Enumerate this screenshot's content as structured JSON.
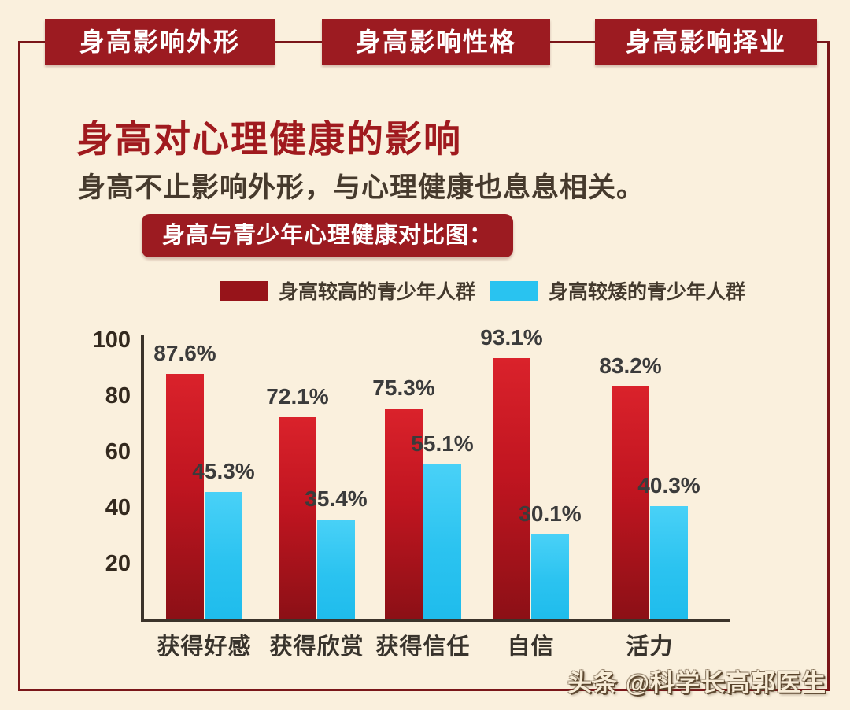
{
  "tabs": [
    {
      "label": "身高影响外形"
    },
    {
      "label": "身高影响性格"
    },
    {
      "label": "身高影响择业"
    }
  ],
  "header": {
    "title": "身高对心理健康的影响",
    "subtitle": "身高不止影响外形，与心理健康也息息相关。",
    "badge": "身高与青少年心理健康对比图："
  },
  "watermark": "头条 @科学长高郭医生",
  "colors": {
    "background": "#faf0dd",
    "banner_red": "#9c1b21",
    "title_red": "#a01a1e",
    "frame_red": "#7a1619",
    "axis": "#3b332a",
    "bar_red": "#b5151d",
    "bar_cyan": "#29c3f0"
  },
  "chart_data": {
    "type": "bar",
    "title": "身高与青少年心理健康对比图",
    "categories": [
      "获得好感",
      "获得欣赏",
      "获得信任",
      "自信",
      "活力"
    ],
    "series": [
      {
        "name": "身高较高的青少年人群",
        "color": "#b5151d",
        "values": [
          87.6,
          72.1,
          75.3,
          93.1,
          83.2
        ]
      },
      {
        "name": "身高较矮的青少年人群",
        "color": "#29c3f0",
        "values": [
          45.3,
          35.4,
          55.1,
          30.1,
          40.3
        ]
      }
    ],
    "value_suffix": "%",
    "yticks": [
      20,
      40,
      60,
      80,
      100
    ],
    "ylim": [
      0,
      100
    ],
    "xlabel": "",
    "ylabel": "",
    "grid": false,
    "legend_position": "top"
  }
}
